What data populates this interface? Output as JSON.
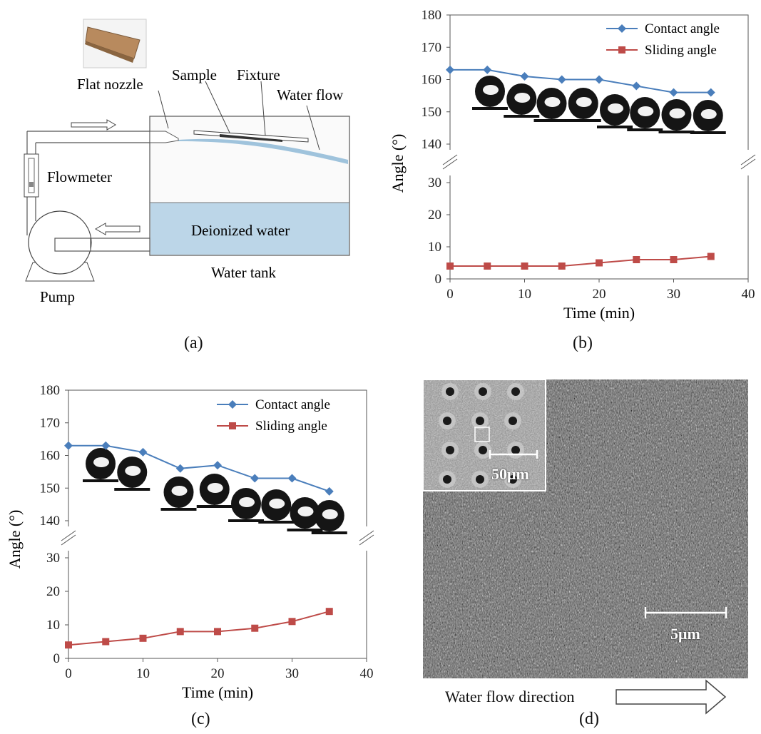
{
  "panel_a": {
    "label": "(a)",
    "flat_nozzle": "Flat nozzle",
    "sample": "Sample",
    "fixture": "Fixture",
    "water_flow": "Water flow",
    "flowmeter": "Flowmeter",
    "deionized_water": "Deionized water",
    "water_tank": "Water tank",
    "pump": "Pump",
    "colors": {
      "water": "#bcd6e8",
      "pipe": "#555555"
    }
  },
  "panel_b": {
    "label": "(b)"
  },
  "panel_c": {
    "label": "(c)"
  },
  "panel_d": {
    "label": "(d)",
    "inset_scale": "50μm",
    "main_scale": "5μm",
    "flow_direction": "Water flow direction"
  },
  "chart_data": [
    {
      "id": "b",
      "type": "line",
      "xlabel": "Time (min)",
      "ylabel": "Angle (°)",
      "xlim": [
        0,
        40
      ],
      "xticks": [
        0,
        10,
        20,
        30,
        40
      ],
      "ylim_upper": [
        140,
        180
      ],
      "yticks_upper": [
        140,
        150,
        160,
        170,
        180
      ],
      "ylim_lower": [
        0,
        30
      ],
      "yticks_lower": [
        0,
        10,
        20,
        30
      ],
      "axis_break": true,
      "legend_position": "top-right",
      "x": [
        0,
        5,
        10,
        15,
        20,
        25,
        30,
        35
      ],
      "series": [
        {
          "name": "Contact angle",
          "color": "#4a7ebb",
          "marker": "diamond",
          "values": [
            163,
            163,
            161,
            160,
            160,
            158,
            156,
            156
          ]
        },
        {
          "name": "Sliding angle",
          "color": "#be4b48",
          "marker": "square",
          "values": [
            4,
            4,
            4,
            4,
            5,
            6,
            6,
            7
          ]
        }
      ]
    },
    {
      "id": "c",
      "type": "line",
      "xlabel": "Time (min)",
      "ylabel": "Angle (°)",
      "xlim": [
        0,
        40
      ],
      "xticks": [
        0,
        10,
        20,
        30,
        40
      ],
      "ylim_upper": [
        140,
        180
      ],
      "yticks_upper": [
        140,
        150,
        160,
        170,
        180
      ],
      "ylim_lower": [
        0,
        30
      ],
      "yticks_lower": [
        0,
        10,
        20,
        30
      ],
      "axis_break": true,
      "legend_position": "top-right",
      "x": [
        0,
        5,
        10,
        15,
        20,
        25,
        30,
        35
      ],
      "series": [
        {
          "name": "Contact angle",
          "color": "#4a7ebb",
          "marker": "diamond",
          "values": [
            163,
            163,
            161,
            156,
            157,
            153,
            153,
            149
          ]
        },
        {
          "name": "Sliding angle",
          "color": "#be4b48",
          "marker": "square",
          "values": [
            4,
            5,
            6,
            8,
            8,
            9,
            11,
            14
          ]
        }
      ]
    }
  ]
}
